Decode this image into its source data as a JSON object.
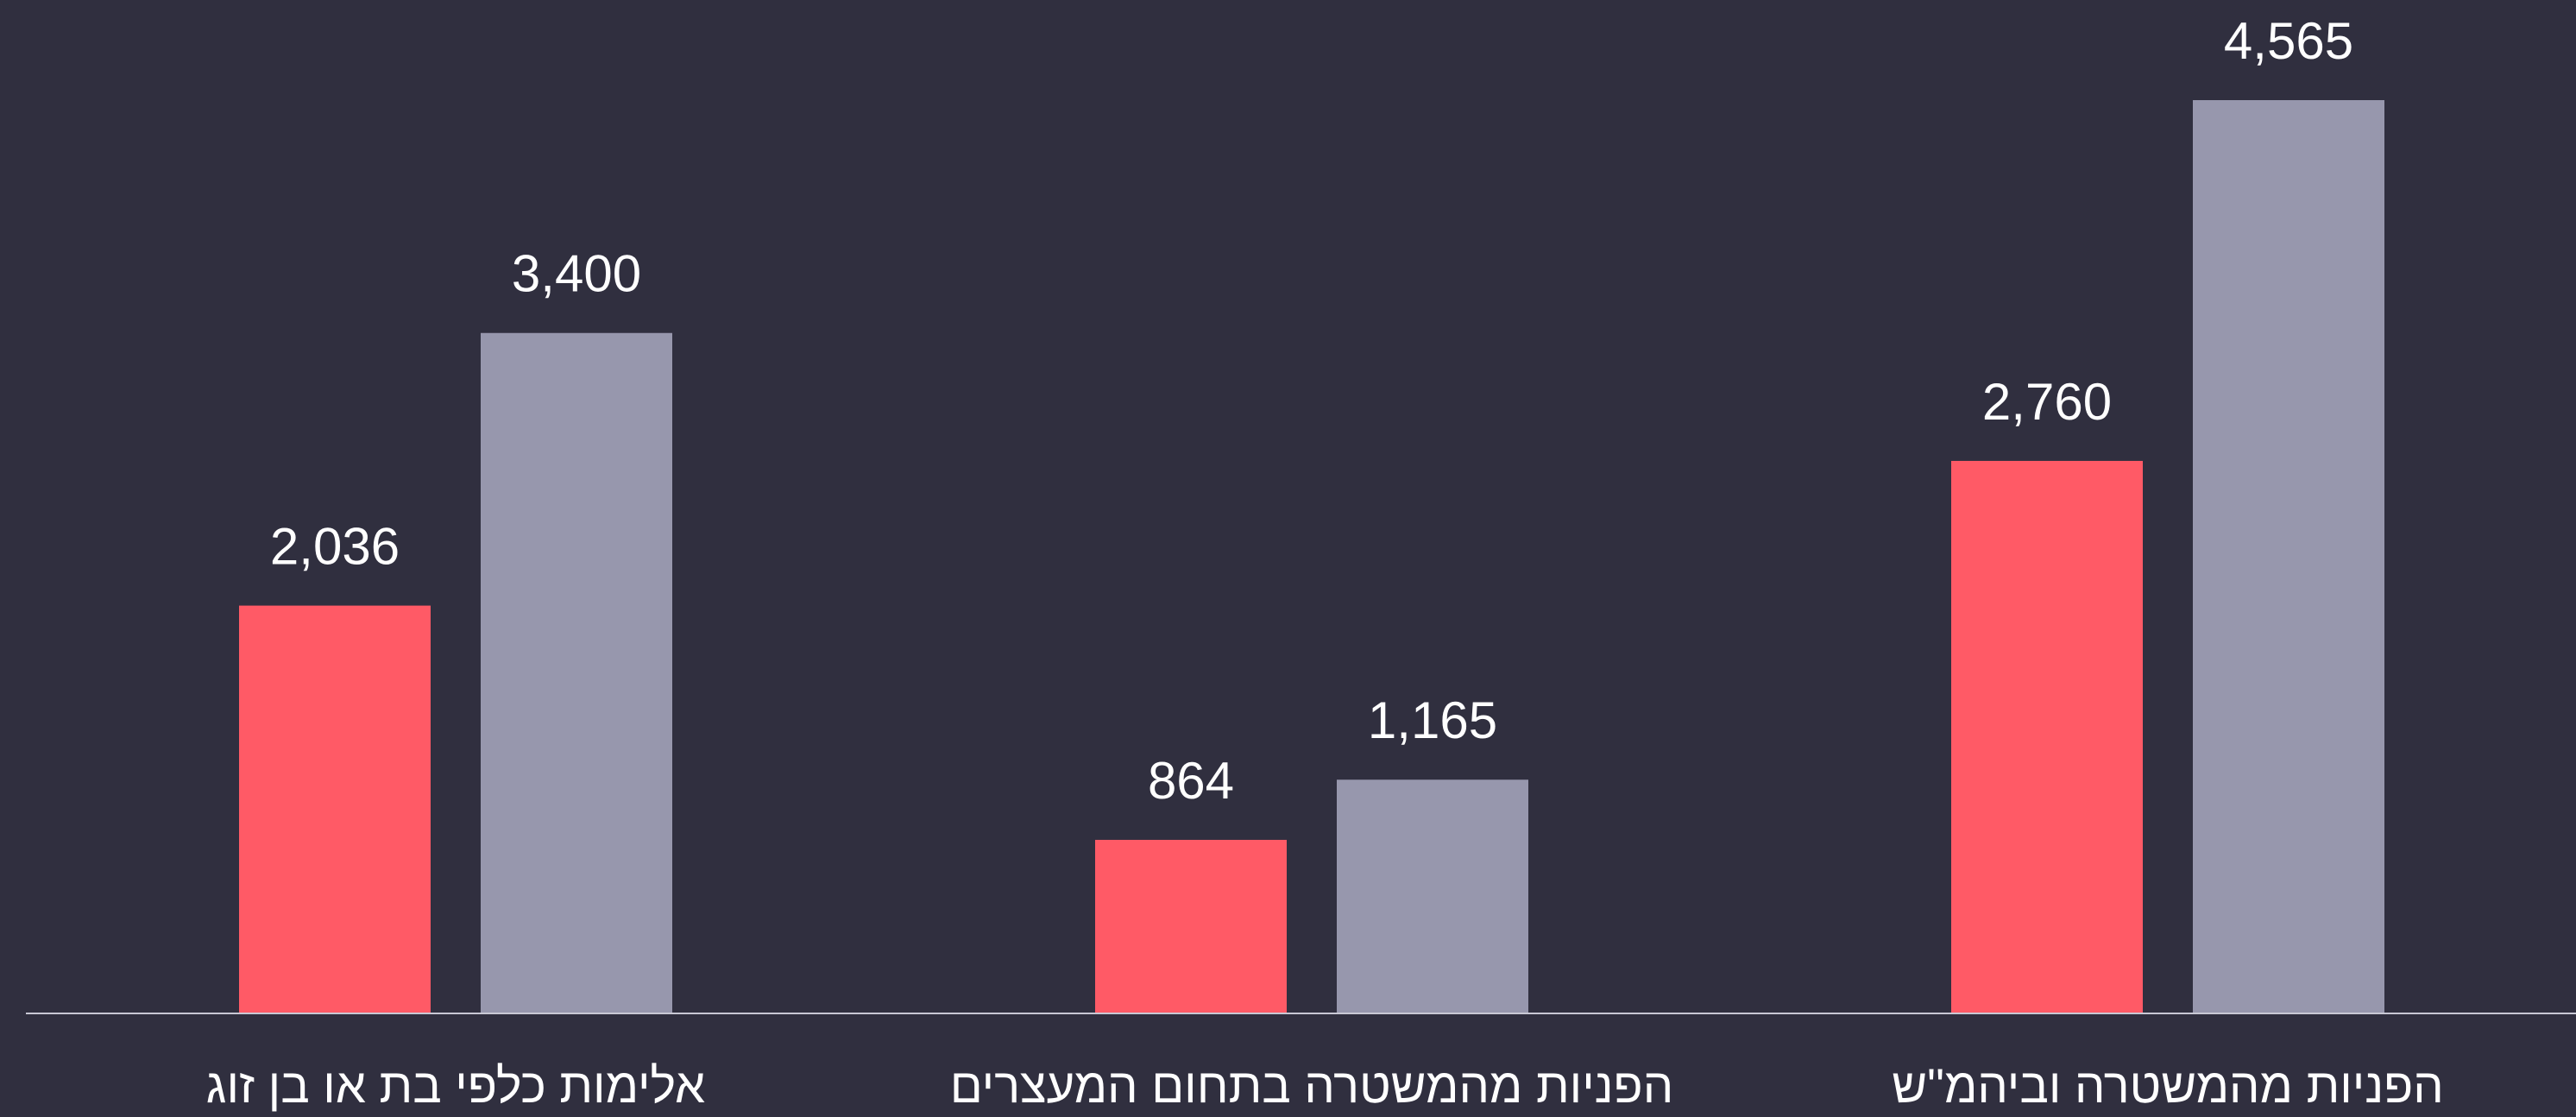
{
  "chart_data": {
    "type": "bar",
    "categories": [
      "אלימות כלפי בת או בן זוג",
      "הפניות מהמשטרה בתחום המעצרים",
      "הפניות מהמשטרה וביהמ\"ש"
    ],
    "series": [
      {
        "color": "#ff5a66",
        "values": [
          2036,
          864,
          2760
        ],
        "value_labels": [
          "2,036",
          "864",
          "2,760"
        ]
      },
      {
        "color": "#9797ad",
        "values": [
          3400,
          1165,
          4565
        ],
        "value_labels": [
          "3,400",
          "1,165",
          "4,565"
        ]
      }
    ]
  }
}
